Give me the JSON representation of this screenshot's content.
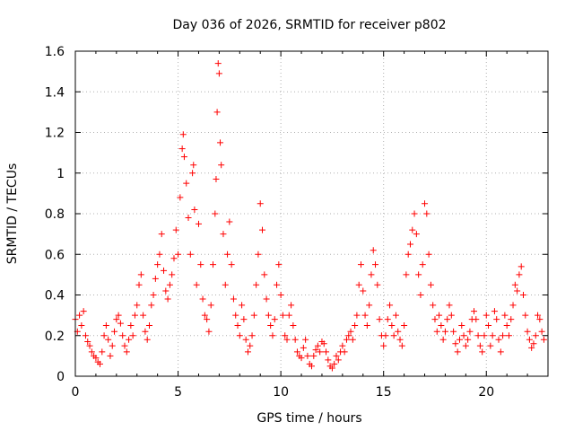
{
  "chart_data": {
    "type": "scatter",
    "title": "Day 036 of 2026, SRMTID for receiver p802",
    "xlabel": "GPS time / hours",
    "ylabel": "SRMTID / TECUs",
    "xlim": [
      0,
      23
    ],
    "ylim": [
      0,
      1.6
    ],
    "grid": true,
    "marker": "+",
    "xticks": [
      0,
      5,
      10,
      15,
      20
    ],
    "xtick_labels": [
      "0",
      "5",
      "10",
      "15",
      "20"
    ],
    "yticks": [
      0,
      0.2,
      0.4,
      0.6,
      0.8,
      1.0,
      1.2,
      1.4,
      1.6
    ],
    "ytick_labels": [
      "0",
      "0.2",
      "0.4",
      "0.6",
      "0.8",
      "1",
      "1.2",
      "1.4",
      "1.6"
    ],
    "series": [
      {
        "name": "p802",
        "color": "#ff0000",
        "points": [
          [
            0.0,
            0.28
          ],
          [
            0.1,
            0.22
          ],
          [
            0.2,
            0.3
          ],
          [
            0.3,
            0.25
          ],
          [
            0.4,
            0.32
          ],
          [
            0.5,
            0.2
          ],
          [
            0.6,
            0.17
          ],
          [
            0.7,
            0.15
          ],
          [
            0.8,
            0.12
          ],
          [
            0.9,
            0.1
          ],
          [
            1.0,
            0.09
          ],
          [
            1.1,
            0.07
          ],
          [
            1.2,
            0.06
          ],
          [
            1.3,
            0.12
          ],
          [
            1.4,
            0.2
          ],
          [
            1.5,
            0.25
          ],
          [
            1.6,
            0.18
          ],
          [
            1.7,
            0.1
          ],
          [
            1.8,
            0.15
          ],
          [
            1.9,
            0.22
          ],
          [
            2.0,
            0.28
          ],
          [
            2.1,
            0.3
          ],
          [
            2.2,
            0.26
          ],
          [
            2.3,
            0.2
          ],
          [
            2.4,
            0.15
          ],
          [
            2.5,
            0.12
          ],
          [
            2.6,
            0.18
          ],
          [
            2.7,
            0.25
          ],
          [
            2.8,
            0.2
          ],
          [
            2.9,
            0.3
          ],
          [
            3.0,
            0.35
          ],
          [
            3.1,
            0.45
          ],
          [
            3.2,
            0.5
          ],
          [
            3.3,
            0.3
          ],
          [
            3.4,
            0.22
          ],
          [
            3.5,
            0.18
          ],
          [
            3.6,
            0.25
          ],
          [
            3.7,
            0.35
          ],
          [
            3.8,
            0.4
          ],
          [
            3.9,
            0.48
          ],
          [
            4.0,
            0.55
          ],
          [
            4.1,
            0.6
          ],
          [
            4.2,
            0.7
          ],
          [
            4.3,
            0.52
          ],
          [
            4.4,
            0.42
          ],
          [
            4.5,
            0.38
          ],
          [
            4.6,
            0.45
          ],
          [
            4.7,
            0.5
          ],
          [
            4.8,
            0.58
          ],
          [
            4.9,
            0.72
          ],
          [
            5.0,
            0.6
          ],
          [
            5.1,
            0.88
          ],
          [
            5.2,
            1.12
          ],
          [
            5.25,
            1.19
          ],
          [
            5.3,
            1.08
          ],
          [
            5.4,
            0.95
          ],
          [
            5.5,
            0.78
          ],
          [
            5.6,
            0.6
          ],
          [
            5.7,
            1.0
          ],
          [
            5.75,
            1.04
          ],
          [
            5.8,
            0.82
          ],
          [
            5.9,
            0.45
          ],
          [
            6.0,
            0.75
          ],
          [
            6.1,
            0.55
          ],
          [
            6.2,
            0.38
          ],
          [
            6.3,
            0.3
          ],
          [
            6.4,
            0.28
          ],
          [
            6.5,
            0.22
          ],
          [
            6.6,
            0.35
          ],
          [
            6.7,
            0.55
          ],
          [
            6.8,
            0.8
          ],
          [
            6.85,
            0.97
          ],
          [
            6.9,
            1.3
          ],
          [
            6.95,
            1.54
          ],
          [
            7.0,
            1.49
          ],
          [
            7.05,
            1.15
          ],
          [
            7.1,
            1.04
          ],
          [
            7.2,
            0.7
          ],
          [
            7.3,
            0.45
          ],
          [
            7.4,
            0.6
          ],
          [
            7.5,
            0.76
          ],
          [
            7.6,
            0.55
          ],
          [
            7.7,
            0.38
          ],
          [
            7.8,
            0.3
          ],
          [
            7.9,
            0.25
          ],
          [
            8.0,
            0.2
          ],
          [
            8.1,
            0.35
          ],
          [
            8.2,
            0.28
          ],
          [
            8.3,
            0.18
          ],
          [
            8.4,
            0.12
          ],
          [
            8.5,
            0.15
          ],
          [
            8.6,
            0.2
          ],
          [
            8.7,
            0.3
          ],
          [
            8.8,
            0.45
          ],
          [
            8.9,
            0.6
          ],
          [
            9.0,
            0.85
          ],
          [
            9.1,
            0.72
          ],
          [
            9.2,
            0.5
          ],
          [
            9.3,
            0.38
          ],
          [
            9.4,
            0.3
          ],
          [
            9.5,
            0.25
          ],
          [
            9.6,
            0.2
          ],
          [
            9.7,
            0.28
          ],
          [
            9.8,
            0.45
          ],
          [
            9.9,
            0.55
          ],
          [
            10.0,
            0.4
          ],
          [
            10.1,
            0.3
          ],
          [
            10.2,
            0.2
          ],
          [
            10.3,
            0.18
          ],
          [
            10.4,
            0.3
          ],
          [
            10.5,
            0.35
          ],
          [
            10.6,
            0.25
          ],
          [
            10.7,
            0.18
          ],
          [
            10.8,
            0.12
          ],
          [
            10.9,
            0.1
          ],
          [
            11.0,
            0.09
          ],
          [
            11.1,
            0.14
          ],
          [
            11.2,
            0.18
          ],
          [
            11.3,
            0.1
          ],
          [
            11.4,
            0.06
          ],
          [
            11.5,
            0.05
          ],
          [
            11.6,
            0.1
          ],
          [
            11.7,
            0.13
          ],
          [
            11.8,
            0.15
          ],
          [
            11.9,
            0.12
          ],
          [
            12.0,
            0.17
          ],
          [
            12.1,
            0.16
          ],
          [
            12.2,
            0.12
          ],
          [
            12.3,
            0.08
          ],
          [
            12.4,
            0.05
          ],
          [
            12.5,
            0.04
          ],
          [
            12.6,
            0.06
          ],
          [
            12.7,
            0.1
          ],
          [
            12.8,
            0.08
          ],
          [
            12.9,
            0.12
          ],
          [
            13.0,
            0.15
          ],
          [
            13.1,
            0.12
          ],
          [
            13.2,
            0.18
          ],
          [
            13.3,
            0.2
          ],
          [
            13.4,
            0.22
          ],
          [
            13.5,
            0.18
          ],
          [
            13.6,
            0.25
          ],
          [
            13.7,
            0.3
          ],
          [
            13.8,
            0.45
          ],
          [
            13.9,
            0.55
          ],
          [
            14.0,
            0.42
          ],
          [
            14.1,
            0.3
          ],
          [
            14.2,
            0.25
          ],
          [
            14.3,
            0.35
          ],
          [
            14.4,
            0.5
          ],
          [
            14.5,
            0.62
          ],
          [
            14.6,
            0.55
          ],
          [
            14.7,
            0.45
          ],
          [
            14.8,
            0.28
          ],
          [
            14.9,
            0.2
          ],
          [
            15.0,
            0.15
          ],
          [
            15.1,
            0.2
          ],
          [
            15.2,
            0.28
          ],
          [
            15.3,
            0.35
          ],
          [
            15.4,
            0.25
          ],
          [
            15.5,
            0.2
          ],
          [
            15.6,
            0.3
          ],
          [
            15.7,
            0.22
          ],
          [
            15.8,
            0.18
          ],
          [
            15.9,
            0.15
          ],
          [
            16.0,
            0.25
          ],
          [
            16.1,
            0.5
          ],
          [
            16.2,
            0.6
          ],
          [
            16.3,
            0.65
          ],
          [
            16.4,
            0.72
          ],
          [
            16.5,
            0.8
          ],
          [
            16.6,
            0.7
          ],
          [
            16.7,
            0.5
          ],
          [
            16.8,
            0.4
          ],
          [
            16.9,
            0.55
          ],
          [
            17.0,
            0.85
          ],
          [
            17.1,
            0.8
          ],
          [
            17.2,
            0.6
          ],
          [
            17.3,
            0.45
          ],
          [
            17.4,
            0.35
          ],
          [
            17.5,
            0.28
          ],
          [
            17.6,
            0.22
          ],
          [
            17.7,
            0.3
          ],
          [
            17.8,
            0.25
          ],
          [
            17.9,
            0.18
          ],
          [
            18.0,
            0.22
          ],
          [
            18.1,
            0.28
          ],
          [
            18.2,
            0.35
          ],
          [
            18.3,
            0.3
          ],
          [
            18.4,
            0.22
          ],
          [
            18.5,
            0.16
          ],
          [
            18.6,
            0.12
          ],
          [
            18.7,
            0.18
          ],
          [
            18.8,
            0.25
          ],
          [
            18.9,
            0.2
          ],
          [
            19.0,
            0.15
          ],
          [
            19.1,
            0.18
          ],
          [
            19.2,
            0.22
          ],
          [
            19.3,
            0.28
          ],
          [
            19.4,
            0.32
          ],
          [
            19.5,
            0.28
          ],
          [
            19.6,
            0.2
          ],
          [
            19.7,
            0.15
          ],
          [
            19.8,
            0.12
          ],
          [
            19.9,
            0.2
          ],
          [
            20.0,
            0.3
          ],
          [
            20.1,
            0.25
          ],
          [
            20.2,
            0.15
          ],
          [
            20.3,
            0.2
          ],
          [
            20.4,
            0.32
          ],
          [
            20.5,
            0.28
          ],
          [
            20.6,
            0.18
          ],
          [
            20.7,
            0.12
          ],
          [
            20.8,
            0.2
          ],
          [
            20.9,
            0.3
          ],
          [
            21.0,
            0.25
          ],
          [
            21.1,
            0.2
          ],
          [
            21.2,
            0.28
          ],
          [
            21.3,
            0.35
          ],
          [
            21.4,
            0.45
          ],
          [
            21.5,
            0.42
          ],
          [
            21.6,
            0.5
          ],
          [
            21.7,
            0.54
          ],
          [
            21.8,
            0.4
          ],
          [
            21.9,
            0.3
          ],
          [
            22.0,
            0.22
          ],
          [
            22.1,
            0.18
          ],
          [
            22.2,
            0.14
          ],
          [
            22.3,
            0.16
          ],
          [
            22.4,
            0.2
          ],
          [
            22.5,
            0.3
          ],
          [
            22.6,
            0.28
          ],
          [
            22.7,
            0.22
          ],
          [
            22.8,
            0.18
          ]
        ]
      }
    ]
  }
}
